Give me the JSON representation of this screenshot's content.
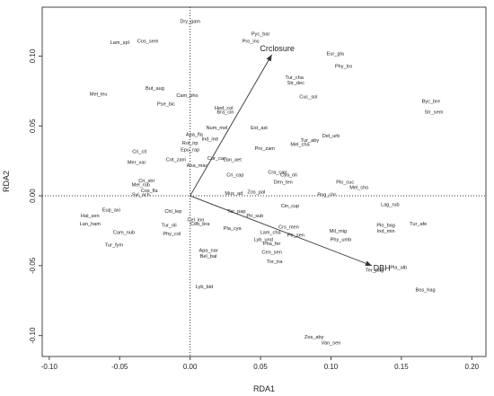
{
  "chart_data": {
    "type": "scatter",
    "xlabel": "RDA1",
    "ylabel": "RDA2",
    "xlim": [
      -0.105,
      0.21
    ],
    "ylim": [
      -0.115,
      0.135
    ],
    "x_ticks": [
      "-0.10",
      "-0.05",
      "0.00",
      "0.05",
      "0.10",
      "0.15",
      "0.20"
    ],
    "x_tick_values": [
      -0.1,
      -0.05,
      0.0,
      0.05,
      0.1,
      0.15,
      0.2
    ],
    "y_ticks": [
      "-0.10",
      "-0.05",
      "0.00",
      "0.05",
      "0.10"
    ],
    "y_tick_values": [
      -0.1,
      -0.05,
      0.0,
      0.05,
      0.1
    ],
    "reference_lines": {
      "x": 0,
      "y": 0,
      "style": "dotted"
    },
    "arrows": [
      {
        "label": "Crclosure",
        "x": 0.058,
        "y": 0.101
      },
      {
        "label": "DBH",
        "x": 0.129,
        "y": -0.05
      }
    ],
    "species": [
      {
        "label": "Dry_gam",
        "x": 0.0,
        "y": 0.125
      },
      {
        "label": "Lam_spl",
        "x": -0.05,
        "y": 0.11
      },
      {
        "label": "Cos_sem",
        "x": -0.03,
        "y": 0.111
      },
      {
        "label": "Pyc_bar",
        "x": 0.05,
        "y": 0.116
      },
      {
        "label": "Pro_ins",
        "x": 0.043,
        "y": 0.111
      },
      {
        "label": "Eur_gla",
        "x": 0.103,
        "y": 0.102
      },
      {
        "label": "Phy_tro",
        "x": 0.109,
        "y": 0.093
      },
      {
        "label": "Tur_cha",
        "x": 0.074,
        "y": 0.085
      },
      {
        "label": "Str_dec",
        "x": 0.075,
        "y": 0.081
      },
      {
        "label": "But_aug",
        "x": -0.025,
        "y": 0.077
      },
      {
        "label": "Mel_leu",
        "x": -0.065,
        "y": 0.073
      },
      {
        "label": "Cam_pho",
        "x": -0.002,
        "y": 0.072
      },
      {
        "label": "Cuc_sol",
        "x": 0.084,
        "y": 0.071
      },
      {
        "label": "Pse_bic",
        "x": -0.017,
        "y": 0.066
      },
      {
        "label": "Byc_bre",
        "x": 0.171,
        "y": 0.068
      },
      {
        "label": "Hed_col",
        "x": 0.024,
        "y": 0.063
      },
      {
        "label": "Bra_cin",
        "x": 0.025,
        "y": 0.06
      },
      {
        "label": "Str_sem",
        "x": 0.173,
        "y": 0.06
      },
      {
        "label": "Num_mel",
        "x": 0.019,
        "y": 0.049
      },
      {
        "label": "Est_ast",
        "x": 0.049,
        "y": 0.049
      },
      {
        "label": "Apa_fla",
        "x": 0.003,
        "y": 0.044
      },
      {
        "label": "Ind_ind",
        "x": 0.014,
        "y": 0.041
      },
      {
        "label": "Rol_irp",
        "x": 0.0,
        "y": 0.038
      },
      {
        "label": "Del_urb",
        "x": 0.1,
        "y": 0.043
      },
      {
        "label": "Tur_aby",
        "x": 0.085,
        "y": 0.04
      },
      {
        "label": "Mel_cha",
        "x": 0.078,
        "y": 0.037
      },
      {
        "label": "Cri_cit",
        "x": -0.036,
        "y": 0.032
      },
      {
        "label": "Epu_rap",
        "x": 0.0,
        "y": 0.033
      },
      {
        "label": "Pro_zam",
        "x": 0.053,
        "y": 0.034
      },
      {
        "label": "Mer_var",
        "x": -0.038,
        "y": 0.024
      },
      {
        "label": "Cur_can",
        "x": 0.019,
        "y": 0.027
      },
      {
        "label": "Cot_zam",
        "x": -0.01,
        "y": 0.026
      },
      {
        "label": "Ana_mac",
        "x": 0.005,
        "y": 0.022
      },
      {
        "label": "Lan_aet",
        "x": 0.03,
        "y": 0.026
      },
      {
        "label": "Cri_stri",
        "x": -0.031,
        "y": 0.011
      },
      {
        "label": "Cri_cap",
        "x": 0.032,
        "y": 0.015
      },
      {
        "label": "Cra_cap",
        "x": 0.062,
        "y": 0.017
      },
      {
        "label": "Cya_oli",
        "x": 0.07,
        "y": 0.015
      },
      {
        "label": "Den_ten",
        "x": 0.066,
        "y": 0.01
      },
      {
        "label": "Plo_cuc",
        "x": 0.11,
        "y": 0.01
      },
      {
        "label": "Mel_cho",
        "x": 0.12,
        "y": 0.006
      },
      {
        "label": "Mel_rub",
        "x": -0.035,
        "y": 0.008
      },
      {
        "label": "Cos_fla",
        "x": -0.029,
        "y": 0.004
      },
      {
        "label": "Syl_ach",
        "x": -0.035,
        "y": 0.001
      },
      {
        "label": "Mus_ad",
        "x": 0.031,
        "y": 0.002
      },
      {
        "label": "Zos_pal",
        "x": 0.047,
        "y": 0.003
      },
      {
        "label": "Pog_chr",
        "x": 0.097,
        "y": 0.001
      },
      {
        "label": "Lag_rub",
        "x": 0.142,
        "y": -0.006
      },
      {
        "label": "Cin_cup",
        "x": 0.071,
        "y": -0.007
      },
      {
        "label": "Eup_axi",
        "x": -0.056,
        "y": -0.01
      },
      {
        "label": "Chl_lep",
        "x": -0.012,
        "y": -0.011
      },
      {
        "label": "Ter_pap",
        "x": 0.033,
        "y": -0.011
      },
      {
        "label": "Pri_sub",
        "x": 0.046,
        "y": -0.014
      },
      {
        "label": "Hal_sen",
        "x": -0.071,
        "y": -0.014
      },
      {
        "label": "Cel_lon",
        "x": 0.004,
        "y": -0.017
      },
      {
        "label": "Ceb_bra",
        "x": 0.007,
        "y": -0.02
      },
      {
        "label": "Lan_ham",
        "x": -0.071,
        "y": -0.02
      },
      {
        "label": "Crs_men",
        "x": 0.07,
        "y": -0.022
      },
      {
        "label": "Pla_cya",
        "x": 0.03,
        "y": -0.023
      },
      {
        "label": "Plo_bag",
        "x": 0.139,
        "y": -0.021
      },
      {
        "label": "Tur_afe",
        "x": 0.162,
        "y": -0.02
      },
      {
        "label": "Ind_min",
        "x": 0.139,
        "y": -0.025
      },
      {
        "label": "Mil_mig",
        "x": 0.105,
        "y": -0.025
      },
      {
        "label": "Cam_nub",
        "x": -0.047,
        "y": -0.026
      },
      {
        "label": "Phy_col",
        "x": -0.013,
        "y": -0.027
      },
      {
        "label": "Lam_cha",
        "x": 0.057,
        "y": -0.026
      },
      {
        "label": "Ptr_sen",
        "x": 0.075,
        "y": -0.028
      },
      {
        "label": "Tur_oli",
        "x": -0.015,
        "y": -0.021
      },
      {
        "label": "Lyb_und",
        "x": 0.052,
        "y": -0.031
      },
      {
        "label": "Phy_umb",
        "x": 0.107,
        "y": -0.031
      },
      {
        "label": "Tur_fym",
        "x": -0.054,
        "y": -0.035
      },
      {
        "label": "Pha_fer",
        "x": 0.058,
        "y": -0.034
      },
      {
        "label": "Apa_nar",
        "x": 0.013,
        "y": -0.039
      },
      {
        "label": "Cen_sen",
        "x": 0.058,
        "y": -0.04
      },
      {
        "label": "Bel_bal",
        "x": 0.013,
        "y": -0.043
      },
      {
        "label": "Tor_tra",
        "x": 0.06,
        "y": -0.047
      },
      {
        "label": "Ter_pag",
        "x": 0.131,
        "y": -0.053
      },
      {
        "label": "Pla_alb",
        "x": 0.148,
        "y": -0.051
      },
      {
        "label": "Lyb_bid",
        "x": 0.01,
        "y": -0.065
      },
      {
        "label": "Bos_hag",
        "x": 0.167,
        "y": -0.067
      },
      {
        "label": "Zos_aby",
        "x": 0.088,
        "y": -0.101
      },
      {
        "label": "Van_sen",
        "x": 0.1,
        "y": -0.105
      }
    ]
  }
}
